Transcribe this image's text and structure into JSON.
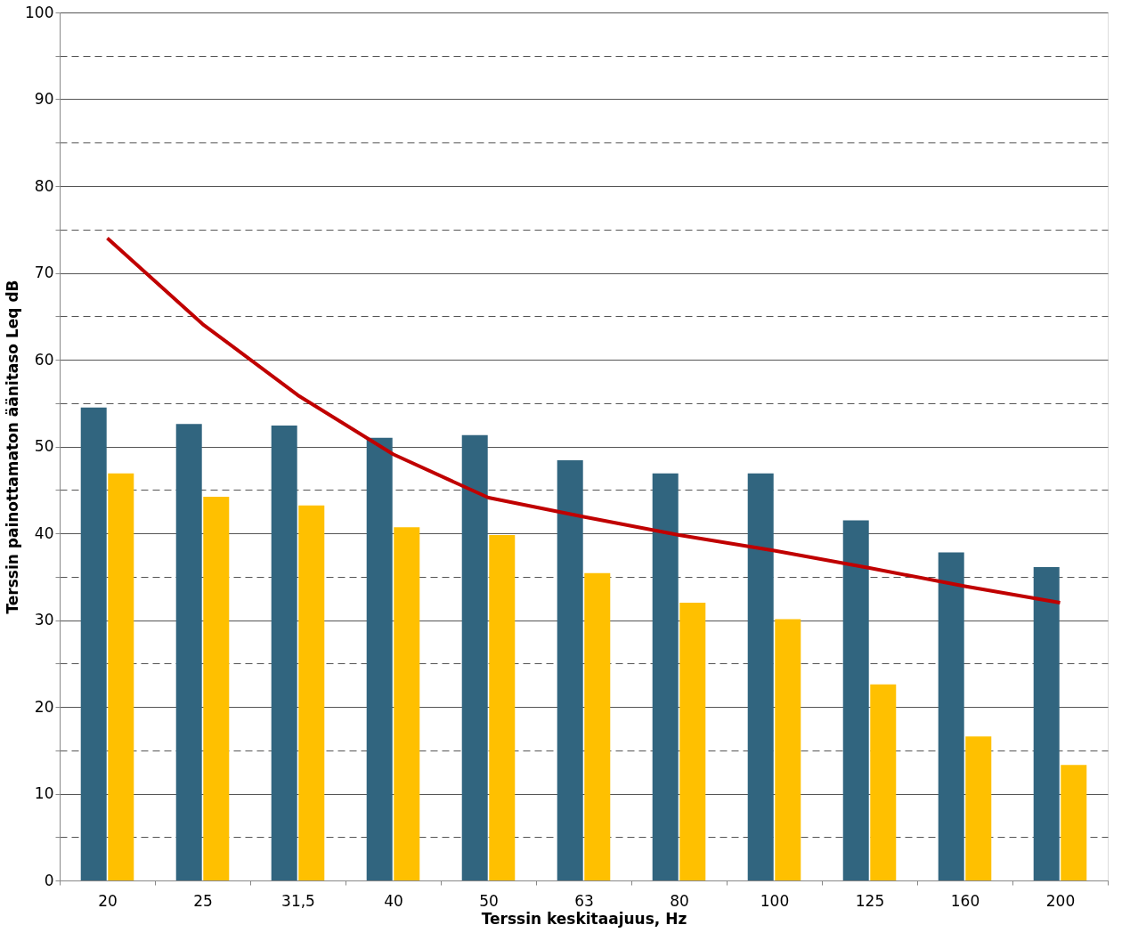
{
  "chart_data": {
    "type": "bar",
    "xlabel": "Terssin keskitaajuus, Hz",
    "ylabel": "Terssin painottamaton äänitaso Leq dB",
    "categories": [
      "20",
      "25",
      "31,5",
      "40",
      "50",
      "63",
      "80",
      "100",
      "125",
      "160",
      "200"
    ],
    "series": [
      {
        "color": "#31657f",
        "values": [
          54.5,
          52.6,
          52.4,
          51.0,
          51.3,
          48.4,
          46.9,
          46.9,
          41.5,
          37.8,
          36.1
        ]
      },
      {
        "color": "#ffc000",
        "values": [
          46.9,
          44.2,
          43.2,
          40.7,
          39.8,
          35.4,
          32.0,
          30.1,
          22.6,
          16.6,
          13.3
        ]
      },
      {
        "type": "line",
        "color": "#c00000",
        "values": [
          74.0,
          64.1,
          55.9,
          49.1,
          44.1,
          41.9,
          39.8,
          38.0,
          36.0,
          33.9,
          32.0
        ]
      }
    ],
    "ylim": [
      0,
      100
    ],
    "yticks": [
      0,
      {
        "value": 5,
        "label": null
      },
      10,
      {
        "value": 15,
        "label": null
      },
      20,
      {
        "value": 25,
        "label": null
      },
      30,
      {
        "value": 35,
        "label": null
      },
      40,
      {
        "value": 45,
        "label": null
      },
      50,
      {
        "value": 55,
        "label": null
      },
      60,
      {
        "value": 65,
        "label": null
      },
      70,
      {
        "value": 75,
        "label": null
      },
      80,
      {
        "value": 85,
        "label": null
      },
      90,
      {
        "value": 95,
        "label": null
      },
      100
    ],
    "grid": "y",
    "marker": "none",
    "line_style": "solid"
  }
}
